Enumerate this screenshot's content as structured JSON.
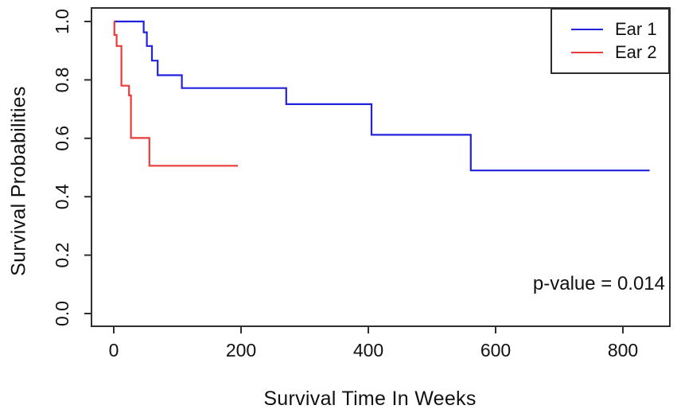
{
  "chart_data": {
    "type": "line",
    "subtype": "kaplan-meier-step",
    "title": "",
    "xlabel": "Survival Time In Weeks",
    "ylabel": "Survival Probabilities",
    "annotation": "p-value = 0.014",
    "xlim": [
      0,
      800
    ],
    "ylim": [
      0,
      1
    ],
    "x_ticks": [
      0,
      200,
      400,
      600,
      800
    ],
    "y_ticks": [
      0.0,
      0.2,
      0.4,
      0.6,
      0.8,
      1.0
    ],
    "grid": false,
    "legend_position": "top-right",
    "colors": {
      "axis": "#2f2f2f",
      "text": "#111111",
      "ear1": "#2222DD",
      "ear2": "#EC3A3A"
    },
    "series": [
      {
        "name": "Ear 1",
        "color": "#2222DD",
        "points": [
          [
            0,
            1.0
          ],
          [
            47,
            0.963
          ],
          [
            52,
            0.916
          ],
          [
            60,
            0.866
          ],
          [
            69,
            0.816
          ],
          [
            107,
            0.772
          ],
          [
            271,
            0.717
          ],
          [
            405,
            0.612
          ],
          [
            561,
            0.49
          ]
        ],
        "end_time": 842
      },
      {
        "name": "Ear 2",
        "color": "#EC3A3A",
        "points": [
          [
            0,
            1.0
          ],
          [
            1,
            0.954
          ],
          [
            4.5,
            0.916
          ],
          [
            12,
            0.78
          ],
          [
            24,
            0.747
          ],
          [
            27,
            0.601
          ],
          [
            56,
            0.506
          ]
        ],
        "end_time": 195
      }
    ]
  }
}
